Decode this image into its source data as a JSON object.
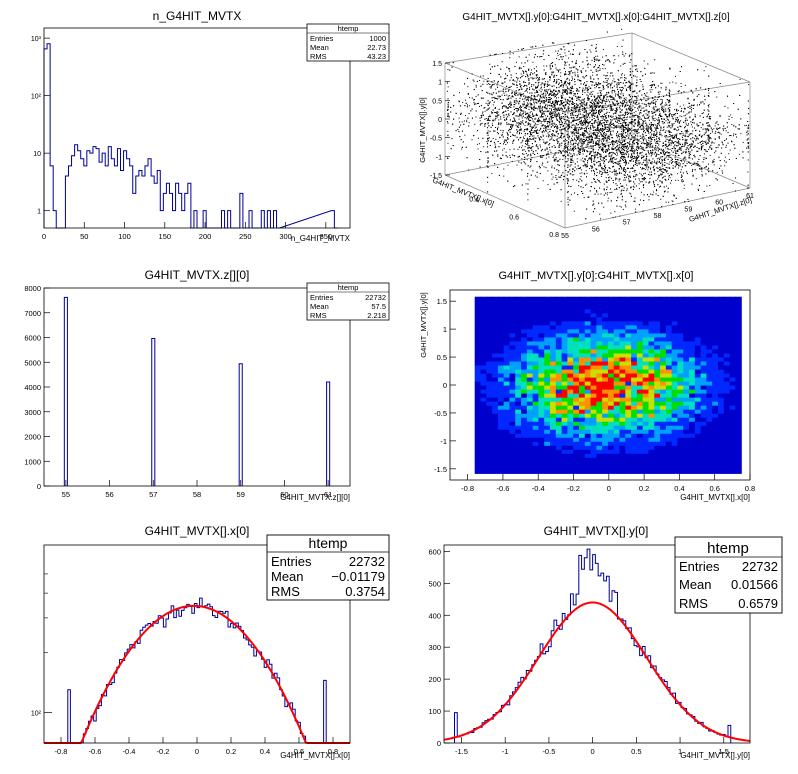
{
  "canvas": {
    "background": "#ffffff",
    "line_color": "#000099",
    "fit_color": "#ff0000"
  },
  "chart_data": [
    {
      "type": "bar",
      "subtype": "histogram-step",
      "title": "n_G4HIT_MVTX",
      "xlabel": "n_G4HIT_MVTX",
      "ylabel": "",
      "log_y": true,
      "xlim": [
        0,
        380
      ],
      "ylim": [
        0.5,
        1500
      ],
      "x_ticks": [
        0,
        50,
        100,
        150,
        200,
        250,
        300,
        350
      ],
      "y_ticks": [
        1,
        10,
        100,
        1000
      ],
      "y_tick_labels": [
        "1",
        "10",
        "10²",
        "10³"
      ],
      "bin_width": 3.8,
      "bins": [
        [
          0,
          650
        ],
        [
          3.8,
          800
        ],
        [
          7.6,
          6
        ],
        [
          11.4,
          1
        ],
        [
          15.2,
          0
        ],
        [
          19,
          0
        ],
        [
          22.8,
          0
        ],
        [
          26.6,
          4
        ],
        [
          30.4,
          6
        ],
        [
          34.2,
          9
        ],
        [
          38,
          14
        ],
        [
          41.8,
          11
        ],
        [
          45.6,
          8
        ],
        [
          49.4,
          6
        ],
        [
          53.2,
          11
        ],
        [
          57,
          10
        ],
        [
          60.8,
          13
        ],
        [
          64.6,
          12
        ],
        [
          68.4,
          7
        ],
        [
          72.2,
          10
        ],
        [
          76,
          6
        ],
        [
          79.8,
          13
        ],
        [
          83.6,
          8
        ],
        [
          87.4,
          6
        ],
        [
          91.2,
          12
        ],
        [
          95,
          5
        ],
        [
          98.8,
          11
        ],
        [
          102.6,
          8
        ],
        [
          106.4,
          6
        ],
        [
          110.2,
          2
        ],
        [
          114,
          4
        ],
        [
          117.8,
          5
        ],
        [
          121.6,
          4
        ],
        [
          125.4,
          6
        ],
        [
          129.2,
          8
        ],
        [
          133,
          4
        ],
        [
          136.8,
          3
        ],
        [
          140.6,
          5
        ],
        [
          144.4,
          1
        ],
        [
          148.2,
          2
        ],
        [
          152,
          3
        ],
        [
          155.8,
          2
        ],
        [
          159.6,
          1
        ],
        [
          163.4,
          3
        ],
        [
          167.2,
          2
        ],
        [
          171,
          1
        ],
        [
          174.8,
          2
        ],
        [
          178.6,
          3
        ],
        [
          182.4,
          0
        ],
        [
          186.2,
          1
        ],
        [
          190,
          0
        ],
        [
          193.8,
          0
        ],
        [
          197.6,
          1
        ],
        [
          201.4,
          0
        ],
        [
          205.2,
          0
        ],
        [
          209,
          0
        ],
        [
          212.8,
          0
        ],
        [
          216.6,
          0
        ],
        [
          220.4,
          1
        ],
        [
          224.2,
          0
        ],
        [
          228,
          1
        ],
        [
          231.8,
          0
        ],
        [
          235.6,
          0
        ],
        [
          239.4,
          0
        ],
        [
          243.2,
          2
        ],
        [
          247,
          0
        ],
        [
          250.8,
          0
        ],
        [
          254.6,
          1
        ],
        [
          258.4,
          0
        ],
        [
          262.2,
          0
        ],
        [
          266,
          0
        ],
        [
          269.8,
          1
        ],
        [
          273.6,
          0
        ],
        [
          277.4,
          1
        ],
        [
          281.2,
          0
        ],
        [
          285,
          1
        ],
        [
          288.8,
          0
        ],
        [
          356.8,
          1
        ],
        [
          360.6,
          0
        ]
      ],
      "stats": {
        "name": "htemp",
        "rows": [
          [
            "Entries",
            "1000"
          ],
          [
            "Mean",
            "22.73"
          ],
          [
            "RMS",
            "43.23"
          ]
        ]
      },
      "legend_position": "top-right"
    },
    {
      "type": "scatter",
      "subtype": "scatter-3d",
      "title": "G4HIT_MVTX[].y[0]:G4HIT_MVTX[].x[0]:G4HIT_MVTX[].z[0]",
      "xlabel": "G4HIT_MVTX[].x[0]",
      "ylabel": "G4HIT_MVTX[].y[0]",
      "zlabel": "G4HIT_MVTX[].z[0]",
      "x_axis_ticks": [
        "0.8",
        "0.6",
        "0.4"
      ],
      "x_axis_label_fragment": "G4HIT_MVTX[].x[0]",
      "z_axis_ticks": [
        "55",
        "56",
        "57",
        "58",
        "59",
        "60",
        "61"
      ],
      "y_axis_ticks": [
        "1.5",
        "1",
        "0.5",
        "0",
        "-0.5",
        "-1",
        "-1.5"
      ],
      "n_points_drawn": 9000,
      "y_range": [
        -1.6,
        1.6
      ],
      "x_range": [
        -0.8,
        0.8
      ],
      "z_range": [
        55,
        61
      ]
    },
    {
      "type": "bar",
      "subtype": "histogram-step",
      "title": "G4HIT_MVTX.z[][0]",
      "xlabel": "G4HIT_MVTX.z[][0]",
      "ylabel": "",
      "xlim": [
        54.5,
        61.5
      ],
      "ylim": [
        0,
        8000
      ],
      "x_ticks": [
        55,
        56,
        57,
        58,
        59,
        60,
        61
      ],
      "y_ticks": [
        0,
        1000,
        2000,
        3000,
        4000,
        5000,
        6000,
        7000,
        8000
      ],
      "bin_width": 0.07,
      "bins": [
        [
          55.0,
          7620
        ],
        [
          57.0,
          5960
        ],
        [
          59.0,
          4940
        ],
        [
          61.0,
          4200
        ]
      ],
      "stats": {
        "name": "htemp",
        "rows": [
          [
            "Entries",
            "22732"
          ],
          [
            "Mean",
            "57.5"
          ],
          [
            "RMS",
            "2.218"
          ]
        ]
      },
      "legend_position": "top-right"
    },
    {
      "type": "heatmap",
      "subtype": "contour",
      "title": "G4HIT_MVTX[].y[0]:G4HIT_MVTX[].x[0]",
      "xlabel": "G4HIT_MVTX[].x[0]",
      "ylabel": "G4HIT_MVTX[].y[0]",
      "xlim": [
        -0.9,
        0.8
      ],
      "ylim": [
        -1.7,
        1.7
      ],
      "x_ticks": [
        -0.8,
        -0.6,
        -0.4,
        -0.2,
        0,
        0.2,
        0.4,
        0.6,
        0.8
      ],
      "y_ticks": [
        -1.5,
        -1,
        -0.5,
        0,
        0.5,
        1,
        1.5
      ],
      "data_extent_x": [
        -0.76,
        0.75
      ],
      "data_extent_y": [
        -1.58,
        1.58
      ],
      "peak": [
        -0.02,
        0.0
      ],
      "colors": [
        "#0000cc",
        "#0028ff",
        "#00a0ff",
        "#00e0c0",
        "#00e000",
        "#c8e000",
        "#ff9000",
        "#ff0000"
      ]
    },
    {
      "type": "bar",
      "subtype": "histogram-step-with-fit",
      "title": "G4HIT_MVTX[].x[0]",
      "xlabel": "G4HIT_MVTX[].x[0]",
      "ylabel": "",
      "log_y": true,
      "xlim": [
        -0.9,
        0.9
      ],
      "y_tick_labels": [
        "10²"
      ],
      "x_ticks": [
        -0.8,
        -0.6,
        -0.4,
        -0.2,
        0,
        0.2,
        0.4,
        0.6,
        0.8
      ],
      "bin_range": [
        -0.76,
        0.76
      ],
      "n_bins": 100,
      "fit": {
        "type": "gaus",
        "mean": -0.02,
        "sigma": 0.37,
        "peak_height": 345
      },
      "stats": {
        "name": "htemp",
        "rows": [
          [
            "Entries",
            "22732"
          ],
          [
            "Mean",
            "−0.01179"
          ],
          [
            "RMS",
            "0.3754"
          ]
        ]
      },
      "legend_position": "top-right"
    },
    {
      "type": "bar",
      "subtype": "histogram-step-with-fit",
      "title": "G4HIT_MVTX[].y[0]",
      "xlabel": "G4HIT_MVTX[].y[0]",
      "ylabel": "",
      "xlim": [
        -1.7,
        1.8
      ],
      "ylim": [
        0,
        620
      ],
      "x_ticks": [
        -1.5,
        -1,
        -0.5,
        0,
        0.5,
        1,
        1.5
      ],
      "y_ticks": [
        0,
        100,
        200,
        300,
        400,
        500,
        600
      ],
      "bin_range": [
        -1.58,
        1.58
      ],
      "n_bins": 100,
      "fit": {
        "type": "gaus",
        "mean": 0.0,
        "sigma": 0.62,
        "peak_height": 440
      },
      "peak_bin_value": 590,
      "stats": {
        "name": "htemp",
        "rows": [
          [
            "Entries",
            "22732"
          ],
          [
            "Mean",
            "0.01566"
          ],
          [
            "RMS",
            "0.6579"
          ]
        ]
      },
      "legend_position": "top-right"
    }
  ]
}
